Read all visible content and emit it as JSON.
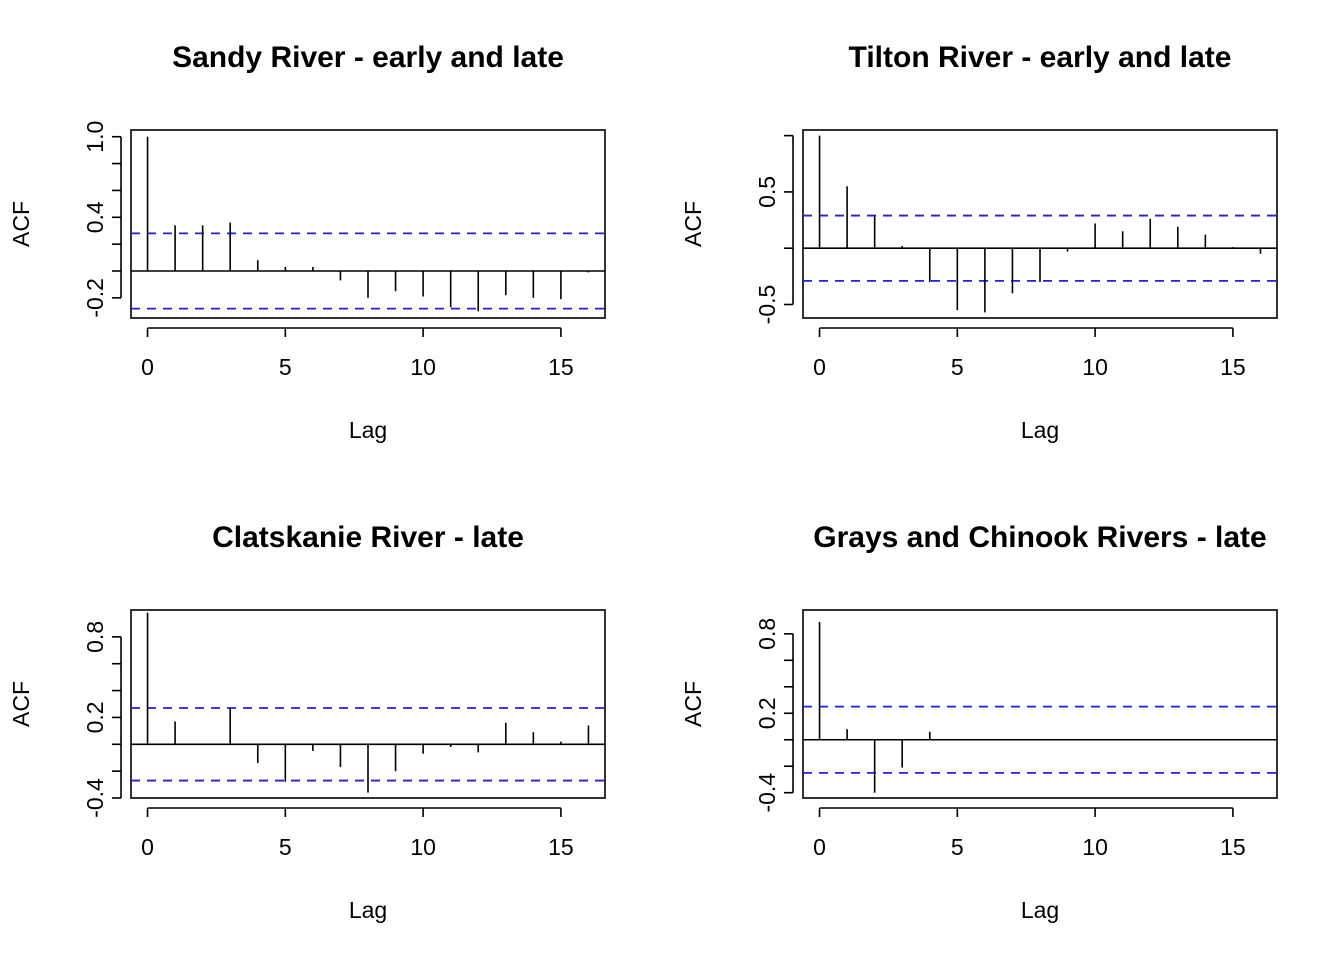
{
  "chart_data": [
    {
      "type": "bar",
      "title": "Sandy River - early and late",
      "xlabel": "Lag",
      "ylabel": "ACF",
      "xlim": [
        -0.6,
        16.6
      ],
      "ylim": [
        -0.35,
        1.05
      ],
      "x_ticks": [
        0,
        5,
        10,
        15
      ],
      "y_ticks": [
        -0.2,
        0,
        0.2,
        0.4,
        0.6,
        0.8,
        1.0
      ],
      "y_tick_labels": [
        "-0.2",
        "",
        "",
        "0.4",
        "",
        "",
        "1.0"
      ],
      "confidence_band": 0.28,
      "lags": [
        0,
        1,
        2,
        3,
        4,
        5,
        6,
        7,
        8,
        9,
        10,
        11,
        12,
        13,
        14,
        15,
        16
      ],
      "values": [
        1.0,
        0.34,
        0.34,
        0.36,
        0.08,
        0.03,
        0.03,
        -0.07,
        -0.2,
        -0.15,
        -0.19,
        -0.27,
        -0.3,
        -0.18,
        -0.2,
        -0.21,
        -0.01
      ]
    },
    {
      "type": "bar",
      "title": "Tilton River - early and late",
      "xlabel": "Lag",
      "ylabel": "ACF",
      "xlim": [
        -0.6,
        16.6
      ],
      "ylim": [
        -0.62,
        1.05
      ],
      "x_ticks": [
        0,
        5,
        10,
        15
      ],
      "y_ticks": [
        -0.5,
        0,
        0.5,
        1.0
      ],
      "y_tick_labels": [
        "-0.5",
        "",
        "0.5",
        ""
      ],
      "confidence_band": 0.29,
      "lags": [
        0,
        1,
        2,
        3,
        4,
        5,
        6,
        7,
        8,
        9,
        10,
        11,
        12,
        13,
        14,
        15,
        16
      ],
      "values": [
        1.0,
        0.55,
        0.29,
        0.02,
        -0.3,
        -0.55,
        -0.57,
        -0.4,
        -0.3,
        -0.03,
        0.22,
        0.15,
        0.26,
        0.19,
        0.12,
        0.01,
        -0.05
      ]
    },
    {
      "type": "bar",
      "title": "Clatskanie River - late",
      "xlabel": "Lag",
      "ylabel": "ACF",
      "xlim": [
        -0.6,
        16.6
      ],
      "ylim": [
        -0.4,
        1.0
      ],
      "x_ticks": [
        0,
        5,
        10,
        15
      ],
      "y_ticks": [
        -0.4,
        -0.2,
        0,
        0.2,
        0.4,
        0.6,
        0.8
      ],
      "y_tick_labels": [
        "-0.4",
        "",
        "",
        "0.2",
        "",
        "",
        "0.8"
      ],
      "confidence_band": 0.27,
      "lags": [
        0,
        1,
        2,
        3,
        4,
        5,
        6,
        7,
        8,
        9,
        10,
        11,
        12,
        13,
        14,
        15,
        16
      ],
      "values": [
        0.98,
        0.17,
        0.0,
        0.27,
        -0.14,
        -0.28,
        -0.05,
        -0.17,
        -0.36,
        -0.2,
        -0.07,
        -0.02,
        -0.06,
        0.16,
        0.09,
        0.02,
        0.14
      ]
    },
    {
      "type": "bar",
      "title": "Grays and Chinook Rivers - late",
      "xlabel": "Lag",
      "ylabel": "ACF",
      "xlim": [
        -0.6,
        16.6
      ],
      "ylim": [
        -0.44,
        0.98
      ],
      "x_ticks": [
        0,
        5,
        10,
        15
      ],
      "y_ticks": [
        -0.4,
        -0.2,
        0,
        0.2,
        0.4,
        0.6,
        0.8
      ],
      "y_tick_labels": [
        "-0.4",
        "",
        "",
        "0.2",
        "",
        "",
        "0.8"
      ],
      "confidence_band": 0.25,
      "lags": [
        0,
        1,
        2,
        3,
        4
      ],
      "values": [
        0.89,
        0.08,
        -0.4,
        -0.21,
        0.06
      ]
    }
  ]
}
